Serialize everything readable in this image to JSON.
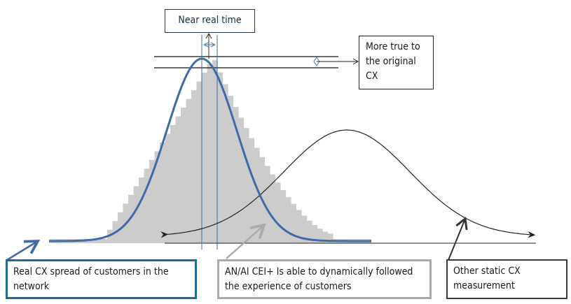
{
  "labels": {
    "near_real_time": "Near real time",
    "more_true": "More true to the original CX",
    "real_cx": "Real CX spread of customers in the network",
    "anai": "AN/AI CEI+ Is able to dynamically followed the experience of customers",
    "static_cx": "Other static CX measurement"
  },
  "colors": {
    "real_cx_curve": "#3f6aa8",
    "histogram": "#cccccc",
    "static_curve": "#222222",
    "real_box_border": "#1f6b93",
    "anai_box_border": "#a9a9a9"
  }
}
